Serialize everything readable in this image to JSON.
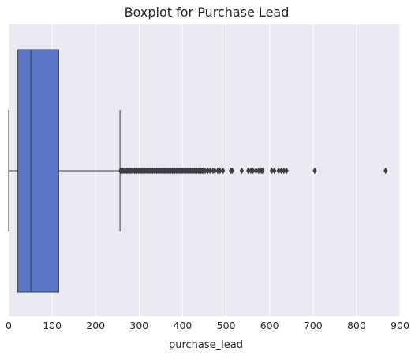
{
  "chart_data": {
    "type": "boxplot",
    "title": "Boxplot for Purchase Lead",
    "xlabel": "purchase_lead",
    "xlim": [
      0,
      900
    ],
    "xticks": [
      0,
      100,
      200,
      300,
      400,
      500,
      600,
      700,
      800,
      900
    ],
    "xtick_labels": [
      "0",
      "100",
      "200",
      "300",
      "400",
      "500",
      "600",
      "700",
      "800",
      "900"
    ],
    "grid": true,
    "box": {
      "whisker_low": 0,
      "q1": 21,
      "median": 51,
      "q3": 115,
      "whisker_high": 256
    },
    "outliers": [
      257,
      259,
      262,
      265,
      268,
      271,
      274,
      277,
      280,
      283,
      286,
      289,
      292,
      295,
      298,
      301,
      304,
      307,
      310,
      313,
      316,
      319,
      322,
      325,
      328,
      331,
      334,
      337,
      340,
      343,
      346,
      349,
      352,
      355,
      358,
      361,
      364,
      367,
      370,
      373,
      376,
      379,
      382,
      385,
      388,
      391,
      394,
      397,
      400,
      403,
      406,
      409,
      412,
      415,
      418,
      421,
      424,
      427,
      430,
      433,
      436,
      439,
      442,
      445,
      448,
      452,
      458,
      463,
      470,
      474,
      481,
      486,
      493,
      511,
      514,
      536,
      551,
      557,
      562,
      569,
      575,
      581,
      584,
      605,
      611,
      621,
      627,
      633,
      639,
      704,
      867
    ],
    "colors": {
      "background": "#eaeaf2",
      "grid": "#ffffff",
      "box_fill": "#5975c5",
      "line": "#3f3f3f",
      "outlier": "#3f3f3f"
    }
  }
}
